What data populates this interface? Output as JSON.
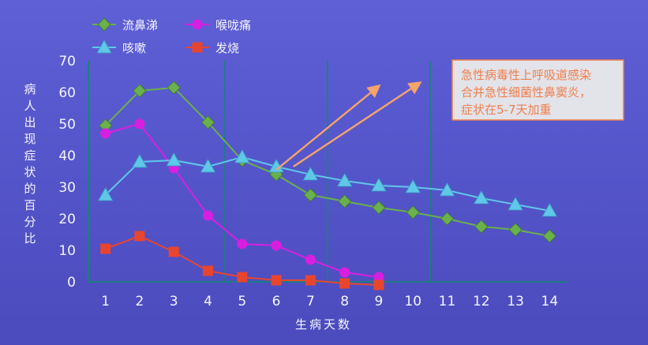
{
  "chart_data": {
    "type": "line",
    "xlabel": "生病天数",
    "ylabel": "病人出现症状的百分比",
    "x": [
      1,
      2,
      3,
      4,
      5,
      6,
      7,
      8,
      9,
      10,
      11,
      12,
      13,
      14
    ],
    "xlim": [
      0.5,
      14.5
    ],
    "ylim": [
      0,
      70
    ],
    "yticks": [
      0,
      10,
      20,
      30,
      40,
      50,
      60,
      70
    ],
    "grid": false,
    "legend": "top-left",
    "series": [
      {
        "name": "流鼻涕",
        "color": "#6ab04c",
        "marker": "diamond",
        "values": [
          49.5,
          60.5,
          61.5,
          50.5,
          38.5,
          34,
          27.5,
          25.5,
          23.5,
          22,
          20,
          17.5,
          16.5,
          14.5
        ]
      },
      {
        "name": "喉咙痛",
        "color": "#d81fe0",
        "marker": "circle",
        "values": [
          47,
          50,
          36,
          21,
          12,
          11.5,
          7,
          3,
          1.5,
          null,
          null,
          null,
          null,
          null
        ]
      },
      {
        "name": "咳嗽",
        "color": "#5fc7e7",
        "marker": "triangle",
        "values": [
          27.5,
          38,
          38.5,
          36.5,
          39.5,
          36.5,
          34,
          32,
          30.5,
          30,
          29,
          26.5,
          24.5,
          22.5
        ]
      },
      {
        "name": "发烧",
        "color": "#e8452f",
        "marker": "square",
        "values": [
          10.5,
          14.5,
          9.5,
          3.5,
          1.5,
          0.5,
          0.5,
          -0.5,
          -1,
          null,
          null,
          null,
          null,
          null
        ]
      }
    ],
    "vlines_x": [
      4.5,
      7.5,
      10.5
    ],
    "vline_color": "#0e8a6a",
    "annotation": {
      "lines": [
        "急性病毒性上呼吸道感染",
        "合并急性细菌性鼻窦炎，",
        "症状在5-7天加重"
      ],
      "color": "#f07f4a",
      "arrows": [
        {
          "from": [
            6,
            35.5
          ],
          "to": [
            9,
            62
          ]
        },
        {
          "from": [
            6.5,
            36.5
          ],
          "to": [
            10.2,
            63
          ]
        }
      ]
    }
  }
}
